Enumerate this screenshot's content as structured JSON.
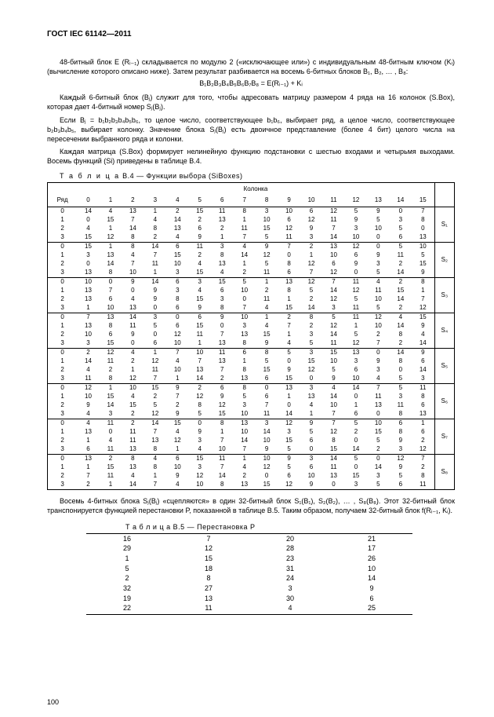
{
  "header": "ГОСТ IEC 61142—2011",
  "para1": "48-битный блок E (Rᵢ₋₁) складывается по модулю 2 («исключающее или») с индивидуальным 48-битным ключом (Kᵢ) (вычисление которого описано ниже). Затем результат разбивается на восемь 6-битных блоков B₁, B₂, … , B₈:",
  "formula": "B₁B₂B₃B₄B₅B₆B₇B₈ = E(Rᵢ₋₁) + Kᵢ",
  "para2": "Каждый 6-битный блок (Bⱼ) служит для того, чтобы адресовать матрицу размером 4 ряда на 16 колонок (S.Box), которая дает 4-битный номер Sⱼ(Bⱼ).",
  "para3": "Если Bⱼ = b₁b₂b₃b₄b₅b₆, то целое число, соответствующее b₁b₆, выбирает ряд, а целое число, соответствующее b₂b₃b₄b₅, выбирает колонку. Значение блока Sⱼ(Bⱼ) есть двоичное представление (более 4 бит) целого числа на пересечении выбранного ряда и колонки.",
  "para4": "Каждая матрица (S.Box) формирует нелинейную функцию подстановки с шестью входами и четырьмя выходами. Восемь функций (Si) приведены в таблице B.4.",
  "tb4": {
    "caption_prefix": "Т а б л и ц а",
    "caption": "  B.4 — Функции выбора (SiBoxes)",
    "kolonka": "Колонка",
    "ryad": "Ряд",
    "cols": [
      "0",
      "1",
      "2",
      "3",
      "4",
      "5",
      "6",
      "7",
      "8",
      "9",
      "10",
      "11",
      "12",
      "13",
      "14",
      "15"
    ],
    "groups": [
      {
        "label": "S₁",
        "rows": [
          [
            14,
            4,
            13,
            1,
            2,
            15,
            11,
            8,
            3,
            10,
            6,
            12,
            5,
            9,
            0,
            7
          ],
          [
            0,
            15,
            7,
            4,
            14,
            2,
            13,
            1,
            10,
            6,
            12,
            11,
            9,
            5,
            3,
            8
          ],
          [
            4,
            1,
            14,
            8,
            13,
            6,
            2,
            11,
            15,
            12,
            9,
            7,
            3,
            10,
            5,
            0
          ],
          [
            15,
            12,
            8,
            2,
            4,
            9,
            1,
            7,
            5,
            11,
            3,
            14,
            10,
            0,
            6,
            13
          ]
        ]
      },
      {
        "label": "S₂",
        "rows": [
          [
            15,
            1,
            8,
            14,
            6,
            11,
            3,
            4,
            9,
            7,
            2,
            13,
            12,
            0,
            5,
            10
          ],
          [
            3,
            13,
            4,
            7,
            15,
            2,
            8,
            14,
            12,
            0,
            1,
            10,
            6,
            9,
            11,
            5
          ],
          [
            0,
            14,
            7,
            11,
            10,
            4,
            13,
            1,
            5,
            8,
            12,
            6,
            9,
            3,
            2,
            15
          ],
          [
            13,
            8,
            10,
            1,
            3,
            15,
            4,
            2,
            11,
            6,
            7,
            12,
            0,
            5,
            14,
            9
          ]
        ]
      },
      {
        "label": "S₃",
        "rows": [
          [
            10,
            0,
            9,
            14,
            6,
            3,
            15,
            5,
            1,
            13,
            12,
            7,
            11,
            4,
            2,
            8
          ],
          [
            13,
            7,
            0,
            9,
            3,
            4,
            6,
            10,
            2,
            8,
            5,
            14,
            12,
            11,
            15,
            1
          ],
          [
            13,
            6,
            4,
            9,
            8,
            15,
            3,
            0,
            11,
            1,
            2,
            12,
            5,
            10,
            14,
            7
          ],
          [
            1,
            10,
            13,
            0,
            6,
            9,
            8,
            7,
            4,
            15,
            14,
            3,
            11,
            5,
            2,
            12
          ]
        ]
      },
      {
        "label": "S₄",
        "rows": [
          [
            7,
            13,
            14,
            3,
            0,
            6,
            9,
            10,
            1,
            2,
            8,
            5,
            11,
            12,
            4,
            15
          ],
          [
            13,
            8,
            11,
            5,
            6,
            15,
            0,
            3,
            4,
            7,
            2,
            12,
            1,
            10,
            14,
            9
          ],
          [
            10,
            6,
            9,
            0,
            12,
            11,
            7,
            13,
            15,
            1,
            3,
            14,
            5,
            2,
            8,
            4
          ],
          [
            3,
            15,
            0,
            6,
            10,
            1,
            13,
            8,
            9,
            4,
            5,
            11,
            12,
            7,
            2,
            14
          ]
        ]
      },
      {
        "label": "S₅",
        "rows": [
          [
            2,
            12,
            4,
            1,
            7,
            10,
            11,
            6,
            8,
            5,
            3,
            15,
            13,
            0,
            14,
            9
          ],
          [
            14,
            11,
            2,
            12,
            4,
            7,
            13,
            1,
            5,
            0,
            15,
            10,
            3,
            9,
            8,
            6
          ],
          [
            4,
            2,
            1,
            11,
            10,
            13,
            7,
            8,
            15,
            9,
            12,
            5,
            6,
            3,
            0,
            14
          ],
          [
            11,
            8,
            12,
            7,
            1,
            14,
            2,
            13,
            6,
            15,
            0,
            9,
            10,
            4,
            5,
            3
          ]
        ]
      },
      {
        "label": "S₆",
        "rows": [
          [
            12,
            1,
            10,
            15,
            9,
            2,
            6,
            8,
            0,
            13,
            3,
            4,
            14,
            7,
            5,
            11
          ],
          [
            10,
            15,
            4,
            2,
            7,
            12,
            9,
            5,
            6,
            1,
            13,
            14,
            0,
            11,
            3,
            8
          ],
          [
            9,
            14,
            15,
            5,
            2,
            8,
            12,
            3,
            7,
            0,
            4,
            10,
            1,
            13,
            11,
            6
          ],
          [
            4,
            3,
            2,
            12,
            9,
            5,
            15,
            10,
            11,
            14,
            1,
            7,
            6,
            0,
            8,
            13
          ]
        ]
      },
      {
        "label": "S₇",
        "rows": [
          [
            4,
            11,
            2,
            14,
            15,
            0,
            8,
            13,
            3,
            12,
            9,
            7,
            5,
            10,
            6,
            1
          ],
          [
            13,
            0,
            11,
            7,
            4,
            9,
            1,
            10,
            14,
            3,
            5,
            12,
            2,
            15,
            8,
            6
          ],
          [
            1,
            4,
            11,
            13,
            12,
            3,
            7,
            14,
            10,
            15,
            6,
            8,
            0,
            5,
            9,
            2
          ],
          [
            6,
            11,
            13,
            8,
            1,
            4,
            10,
            7,
            9,
            5,
            0,
            15,
            14,
            2,
            3,
            12
          ]
        ]
      },
      {
        "label": "S₈",
        "rows": [
          [
            13,
            2,
            8,
            4,
            6,
            15,
            11,
            1,
            10,
            9,
            3,
            14,
            5,
            0,
            12,
            7
          ],
          [
            1,
            15,
            13,
            8,
            10,
            3,
            7,
            4,
            12,
            5,
            6,
            11,
            0,
            14,
            9,
            2
          ],
          [
            7,
            11,
            4,
            1,
            9,
            12,
            14,
            2,
            0,
            6,
            10,
            13,
            15,
            3,
            5,
            8
          ],
          [
            2,
            1,
            14,
            7,
            4,
            10,
            8,
            13,
            15,
            12,
            9,
            0,
            3,
            5,
            6,
            11
          ]
        ]
      }
    ]
  },
  "para5": "Восемь 4-битных блока Sⱼ(Bⱼ) «сцепляются» в один 32-битный блок S₁(B₁), S₂(B₂), … , S₈(B₈). Этот 32-битный блок транспонируется функцией перестановки P, показанной в таблице B.5. Таким образом, получаем 32-битный блок f(Rᵢ₋₁, Kᵢ).",
  "tb5": {
    "caption_prefix": "Т а б л и ц а",
    "caption": "  B.5 — Перестановка P",
    "rows": [
      [
        16,
        7,
        20,
        21
      ],
      [
        29,
        12,
        28,
        17
      ],
      [
        1,
        15,
        23,
        26
      ],
      [
        5,
        18,
        31,
        10
      ],
      [
        2,
        8,
        24,
        14
      ],
      [
        32,
        27,
        3,
        9
      ],
      [
        19,
        13,
        30,
        6
      ],
      [
        22,
        11,
        4,
        25
      ]
    ]
  },
  "page_num": "100"
}
